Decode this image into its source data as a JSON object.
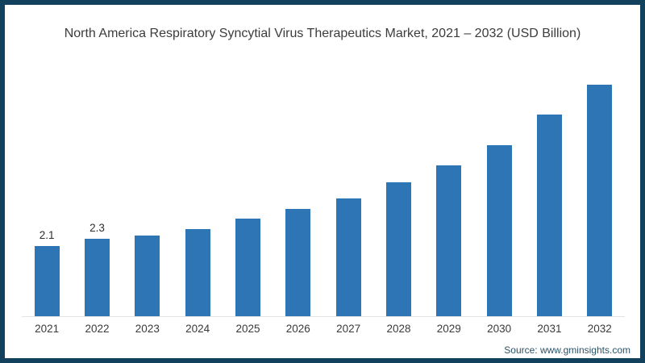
{
  "frame": {
    "border_color": "#12415d",
    "background_color": "#ffffff"
  },
  "chart_data": {
    "type": "bar",
    "title": "North America Respiratory Syncytial Virus Therapeutics Market, 2021 – 2032 (USD Billion)",
    "categories": [
      "2021",
      "2022",
      "2023",
      "2024",
      "2025",
      "2026",
      "2027",
      "2028",
      "2029",
      "2030",
      "2031",
      "2032"
    ],
    "values": [
      2.1,
      2.3,
      2.4,
      2.6,
      2.9,
      3.2,
      3.5,
      4.0,
      4.5,
      5.1,
      6.0,
      6.9
    ],
    "bar_labels": [
      "2.1",
      "2.3",
      "",
      "",
      "",
      "",
      "",
      "",
      "",
      "",
      "",
      ""
    ],
    "bar_color": "#2e75b6",
    "xlabel": "",
    "ylabel": "",
    "ylim": [
      0,
      7.2
    ],
    "grid": false,
    "legend": false,
    "axis_line_color": "#e3e3e3",
    "label_color": "#3a3a3a"
  },
  "source": {
    "label": "Source: www.gminsights.com"
  }
}
